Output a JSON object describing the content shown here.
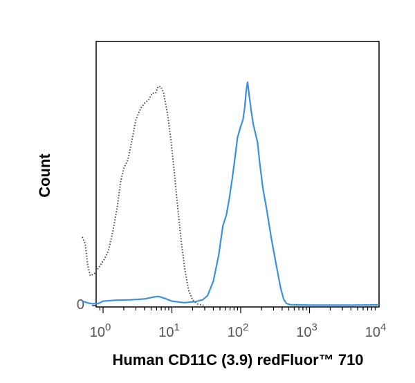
{
  "chart_data": {
    "type": "line",
    "xlabel": "Human CD11C (3.9) redFluor™ 710",
    "ylabel": "Count",
    "x_scale": "log",
    "xlim": [
      0.5,
      10000
    ],
    "ylim": [
      0,
      100
    ],
    "x_ticks": [
      {
        "value": 1,
        "base": "10",
        "exp": "0"
      },
      {
        "value": 10,
        "base": "10",
        "exp": "1"
      },
      {
        "value": 100,
        "base": "10",
        "exp": "2"
      },
      {
        "value": 1000,
        "base": "10",
        "exp": "3"
      },
      {
        "value": 10000,
        "base": "10",
        "exp": "4"
      }
    ],
    "y_ticks": [
      {
        "value": 0,
        "label": "0"
      }
    ],
    "grid": false,
    "series": [
      {
        "style": "dotted",
        "color": "#444444",
        "points": [
          [
            0.5,
            31
          ],
          [
            0.55,
            28
          ],
          [
            0.6,
            18
          ],
          [
            0.65,
            13.5
          ],
          [
            0.75,
            14.5
          ],
          [
            0.9,
            18
          ],
          [
            1.05,
            21
          ],
          [
            1.2,
            25
          ],
          [
            1.4,
            34
          ],
          [
            1.6,
            44
          ],
          [
            1.8,
            56
          ],
          [
            2.0,
            62
          ],
          [
            2.3,
            66
          ],
          [
            2.6,
            74
          ],
          [
            3.0,
            84
          ],
          [
            3.5,
            89
          ],
          [
            4.0,
            91.5
          ],
          [
            4.6,
            93
          ],
          [
            5.2,
            96
          ],
          [
            5.8,
            96
          ],
          [
            6.3,
            99
          ],
          [
            6.9,
            99
          ],
          [
            7.6,
            96
          ],
          [
            8.6,
            87
          ],
          [
            9.6,
            76
          ],
          [
            10.8,
            61
          ],
          [
            12.2,
            44
          ],
          [
            13.8,
            28
          ],
          [
            15.5,
            16
          ],
          [
            17.5,
            7
          ],
          [
            20,
            2.5
          ],
          [
            24,
            0.6
          ],
          [
            30,
            0
          ]
        ]
      },
      {
        "style": "solid",
        "color": "#3b8fe0",
        "points": [
          [
            0.5,
            2
          ],
          [
            0.6,
            1.2
          ],
          [
            0.7,
            0.8
          ],
          [
            0.85,
            0.9
          ],
          [
            1.0,
            2.0
          ],
          [
            1.5,
            2.4
          ],
          [
            2.5,
            2.6
          ],
          [
            4.0,
            3.0
          ],
          [
            5.5,
            3.9
          ],
          [
            6.5,
            4.1
          ],
          [
            8.0,
            3.2
          ],
          [
            10,
            2.0
          ],
          [
            15,
            1.3
          ],
          [
            22,
            1.8
          ],
          [
            28,
            2.6
          ],
          [
            33,
            4.5
          ],
          [
            40,
            11
          ],
          [
            48,
            23
          ],
          [
            55,
            36
          ],
          [
            62,
            41
          ],
          [
            68,
            48
          ],
          [
            75,
            57
          ],
          [
            82,
            66
          ],
          [
            90,
            76
          ],
          [
            100,
            81
          ],
          [
            108,
            84
          ],
          [
            115,
            90
          ],
          [
            120,
            97
          ],
          [
            126,
            101
          ],
          [
            133,
            95
          ],
          [
            142,
            88
          ],
          [
            152,
            82
          ],
          [
            163,
            78
          ],
          [
            175,
            74
          ],
          [
            190,
            64
          ],
          [
            210,
            53
          ],
          [
            240,
            43
          ],
          [
            280,
            30
          ],
          [
            330,
            18
          ],
          [
            380,
            8
          ],
          [
            420,
            3
          ],
          [
            460,
            1
          ],
          [
            520,
            0.4
          ],
          [
            700,
            0.3
          ],
          [
            1000,
            0.2
          ],
          [
            3000,
            0.2
          ],
          [
            10000,
            0.3
          ]
        ]
      }
    ]
  }
}
